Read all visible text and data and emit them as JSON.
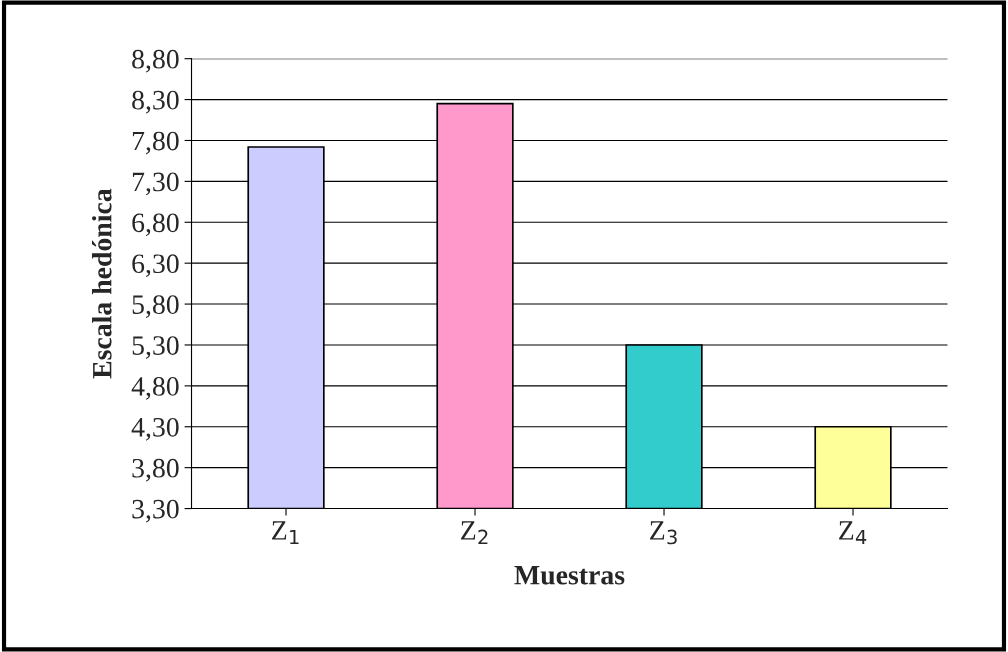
{
  "chart_data": {
    "type": "bar",
    "xlabel": "Muestras",
    "ylabel": "Escala hedónica",
    "categories": [
      "Z$_{1}$",
      "Z$_{2}$",
      "Z$_{3}$",
      "Z$_{4}$"
    ],
    "values": [
      7.72,
      8.25,
      5.3,
      4.3
    ],
    "colors": [
      "#ccccff",
      "#ff99cc",
      "#33cccc",
      "#ffff99"
    ],
    "ylim": [
      3.3,
      8.8
    ],
    "yticks": [
      {
        "value": 3.3,
        "label": "3,30"
      },
      {
        "value": 3.8,
        "label": "3,80"
      },
      {
        "value": 4.3,
        "label": "4,30"
      },
      {
        "value": 4.8,
        "label": "4,80"
      },
      {
        "value": 5.3,
        "label": "5,30"
      },
      {
        "value": 5.8,
        "label": "5,80"
      },
      {
        "value": 6.3,
        "label": "6,30"
      },
      {
        "value": 6.8,
        "label": "6,80"
      },
      {
        "value": 7.3,
        "label": "7,30"
      },
      {
        "value": 7.8,
        "label": "7,80"
      },
      {
        "value": 8.3,
        "label": "8,30"
      },
      {
        "value": 8.8,
        "label": "8,80"
      }
    ],
    "grid": "y"
  }
}
